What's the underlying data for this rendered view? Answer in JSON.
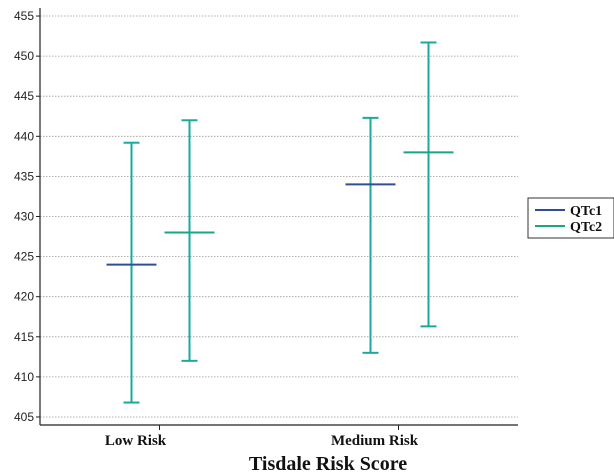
{
  "chart_data": {
    "type": "error_bar",
    "xlabel": "Tisdale Risk Score",
    "categories": [
      "Low Risk",
      "Medium Risk"
    ],
    "ylim": [
      404,
      456
    ],
    "yticks": [
      405,
      410,
      415,
      420,
      425,
      430,
      435,
      440,
      445,
      450,
      455
    ],
    "grid": true,
    "legend_position": "right",
    "series": [
      {
        "name": "QTc1",
        "color": "#2e4d9c",
        "whisker_color": "#1aaa9c",
        "points": [
          {
            "category": "Low Risk",
            "mean": 424,
            "lower": 406.8,
            "upper": 439.2
          },
          {
            "category": "Medium Risk",
            "mean": 434,
            "lower": 413.0,
            "upper": 442.3
          }
        ]
      },
      {
        "name": "QTc2",
        "color": "#1aa583",
        "whisker_color": "#1aaa9c",
        "points": [
          {
            "category": "Low Risk",
            "mean": 428,
            "lower": 412.0,
            "upper": 442.0
          },
          {
            "category": "Medium Risk",
            "mean": 438,
            "lower": 416.3,
            "upper": 451.7
          }
        ]
      }
    ]
  }
}
